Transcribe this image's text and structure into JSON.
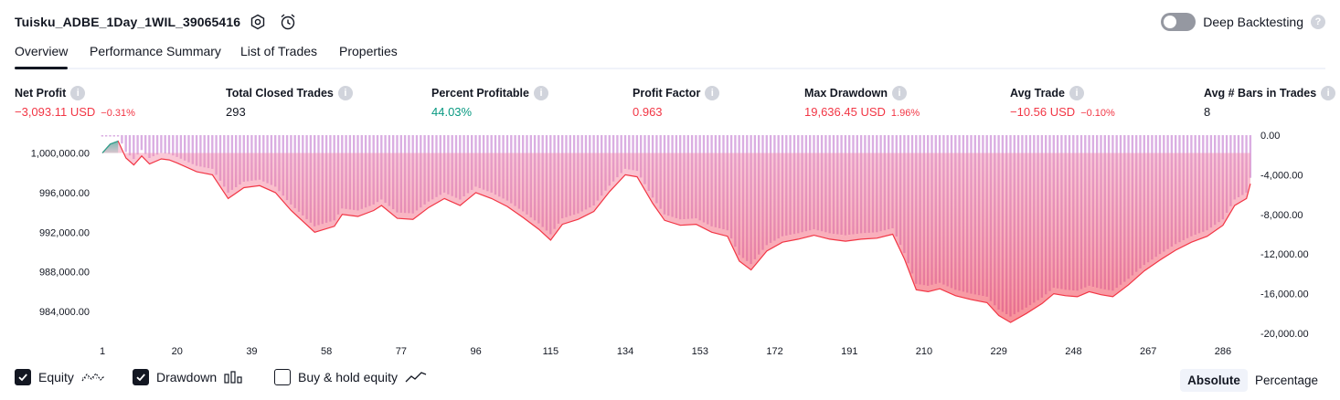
{
  "header": {
    "strategy_name": "Tuisku_ADBE_1Day_1WIL_39065416",
    "deep_backtesting_label": "Deep Backtesting",
    "deep_backtesting_enabled": false
  },
  "tabs": [
    {
      "label": "Overview",
      "active": true
    },
    {
      "label": "Performance Summary",
      "active": false
    },
    {
      "label": "List of Trades",
      "active": false
    },
    {
      "label": "Properties",
      "active": false
    }
  ],
  "metrics": [
    {
      "label": "Net Profit",
      "value": "−3,093.11 USD",
      "sub": "−0.31%",
      "tone": "neg"
    },
    {
      "label": "Total Closed Trades",
      "value": "293",
      "sub": "",
      "tone": "neutral"
    },
    {
      "label": "Percent Profitable",
      "value": "44.03%",
      "sub": "",
      "tone": "pos"
    },
    {
      "label": "Profit Factor",
      "value": "0.963",
      "sub": "",
      "tone": "neg"
    },
    {
      "label": "Max Drawdown",
      "value": "19,636.45 USD",
      "sub": "1.96%",
      "tone": "neg"
    },
    {
      "label": "Avg Trade",
      "value": "−10.56 USD",
      "sub": "−0.10%",
      "tone": "neg"
    },
    {
      "label": "Avg # Bars in Trades",
      "value": "8",
      "sub": "",
      "tone": "neutral"
    }
  ],
  "chart_data": {
    "type": "line",
    "x_ticks": [
      "1",
      "20",
      "39",
      "58",
      "77",
      "96",
      "115",
      "134",
      "153",
      "172",
      "191",
      "210",
      "229",
      "248",
      "267",
      "286"
    ],
    "xlim": [
      1,
      293
    ],
    "left_axis": {
      "ticks": [
        "1,000,000.00",
        "996,000.00",
        "992,000.00",
        "988,000.00",
        "984,000.00"
      ],
      "ylim": [
        981800,
        1001800
      ]
    },
    "right_axis": {
      "ticks": [
        "0.00",
        "-4,000.00",
        "-8,000.00",
        "-12,000.00",
        "-16,000.00",
        "-20,000.00"
      ],
      "ylim": [
        -20000,
        0
      ]
    },
    "series": [
      {
        "name": "Equity",
        "color_loss": "#f23645",
        "color_gain": "#22ab94",
        "x": [
          1,
          3,
          5,
          7,
          9,
          11,
          13,
          16,
          18,
          20,
          25,
          29,
          33,
          37,
          41,
          45,
          49,
          55,
          60,
          62,
          66,
          70,
          72,
          76,
          80,
          84,
          88,
          92,
          96,
          100,
          104,
          108,
          112,
          115,
          118,
          122,
          126,
          130,
          134,
          137,
          141,
          144,
          148,
          152,
          156,
          160,
          163,
          166,
          170,
          174,
          178,
          182,
          186,
          190,
          194,
          198,
          202,
          205,
          208,
          211,
          214,
          218,
          222,
          226,
          229,
          232,
          236,
          240,
          243,
          246,
          249,
          252,
          255,
          258,
          262,
          266,
          270,
          274,
          278,
          282,
          286,
          289,
          292,
          293
        ],
        "y": [
          1000000,
          1000900,
          1001200,
          999500,
          998800,
          999700,
          998900,
          999400,
          999300,
          999000,
          998100,
          997800,
          995400,
          996500,
          996700,
          996000,
          994200,
          992000,
          992600,
          993800,
          993600,
          994200,
          994700,
          993400,
          993300,
          994500,
          995400,
          994700,
          996000,
          995400,
          994600,
          993500,
          992300,
          991200,
          992800,
          993300,
          994100,
          996100,
          997800,
          997600,
          994900,
          993200,
          992700,
          992800,
          992000,
          991600,
          989100,
          988200,
          990100,
          991000,
          991300,
          991700,
          991300,
          991100,
          991300,
          991400,
          991800,
          989300,
          986200,
          986000,
          986300,
          985600,
          985200,
          984900,
          983600,
          982900,
          983800,
          984800,
          985800,
          985600,
          985500,
          986000,
          985700,
          985500,
          986700,
          988100,
          989200,
          990200,
          991000,
          991600,
          992700,
          994700,
          995400,
          996900
        ]
      },
      {
        "name": "Drawdown",
        "color": "#ce93d8",
        "x": [
          1,
          3,
          5,
          7,
          9,
          11,
          13,
          16,
          18,
          20,
          25,
          29,
          33,
          37,
          41,
          45,
          49,
          55,
          60,
          62,
          66,
          70,
          72,
          76,
          80,
          84,
          88,
          92,
          96,
          100,
          104,
          108,
          112,
          115,
          118,
          122,
          126,
          130,
          134,
          137,
          141,
          144,
          148,
          152,
          156,
          160,
          163,
          166,
          170,
          174,
          178,
          182,
          186,
          190,
          194,
          198,
          202,
          205,
          208,
          211,
          214,
          218,
          222,
          226,
          229,
          232,
          236,
          240,
          243,
          246,
          249,
          252,
          255,
          258,
          262,
          266,
          270,
          274,
          278,
          282,
          286,
          289,
          292,
          293
        ],
        "y": [
          0,
          0,
          0,
          -1700,
          -2400,
          -1500,
          -2300,
          -1800,
          -1900,
          -2200,
          -3100,
          -3400,
          -5800,
          -4700,
          -4500,
          -5200,
          -7000,
          -9200,
          -8600,
          -7400,
          -7600,
          -7000,
          -6500,
          -7800,
          -7900,
          -6700,
          -5800,
          -6500,
          -5200,
          -5800,
          -6600,
          -7700,
          -8900,
          -10000,
          -8400,
          -7900,
          -7100,
          -5100,
          -3400,
          -3600,
          -6300,
          -8000,
          -8500,
          -8400,
          -9200,
          -9600,
          -12100,
          -13000,
          -11100,
          -10200,
          -9900,
          -9500,
          -9900,
          -10100,
          -9900,
          -9800,
          -9400,
          -11900,
          -15000,
          -15200,
          -14900,
          -15600,
          -16000,
          -16300,
          -17600,
          -18300,
          -17400,
          -16400,
          -15400,
          -15600,
          -15700,
          -15200,
          -15500,
          -15700,
          -14500,
          -13100,
          -12000,
          -11000,
          -10200,
          -9600,
          -8500,
          -6500,
          -5800,
          -4300
        ]
      }
    ],
    "legend": [
      {
        "label": "Equity",
        "checked": true
      },
      {
        "label": "Drawdown",
        "checked": true
      },
      {
        "label": "Buy & hold equity",
        "checked": false
      }
    ],
    "scale_options": [
      {
        "label": "Absolute",
        "active": true
      },
      {
        "label": "Percentage",
        "active": false
      }
    ]
  }
}
